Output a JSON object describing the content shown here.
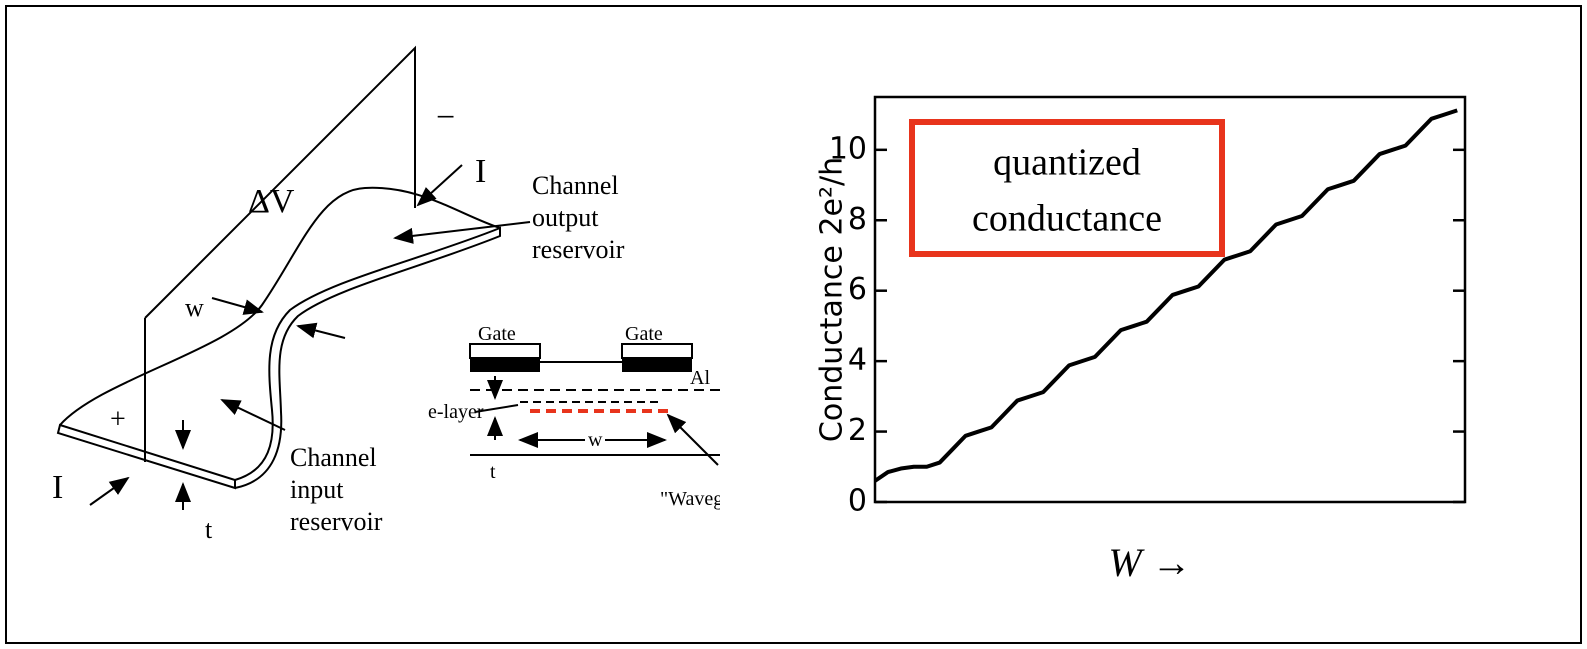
{
  "diagram": {
    "delta_v": "ΔV",
    "minus": "−",
    "plus": "+",
    "current_top": "I",
    "current_bottom": "I",
    "width_label": "w",
    "thickness_label": "t",
    "output_reservoir": [
      "Channel",
      "output",
      "reservoir"
    ],
    "input_reservoir": [
      "Channel",
      "input",
      "reservoir"
    ],
    "inset": {
      "gate_left": "Gate",
      "gate_right": "Gate",
      "al": "Al",
      "e_layer": "e-layer",
      "w": "w",
      "t": "t",
      "waveguide": "\"Waveg"
    }
  },
  "chart_data": {
    "type": "line",
    "ylabel": "Conductance 2e²/h",
    "xlabel": "W →",
    "annotation": [
      "quantized",
      "conductance"
    ],
    "x": [
      0,
      0.25,
      0.5,
      0.75,
      1,
      1.25,
      1.5,
      1.75,
      2,
      2.25,
      2.5,
      2.75,
      3,
      3.25,
      3.5,
      3.75,
      4,
      4.25,
      4.5,
      4.75,
      5,
      5.25,
      5.5,
      5.75,
      6,
      6.25,
      6.5,
      6.75,
      7,
      7.25,
      7.5,
      7.75,
      8,
      8.25,
      8.5,
      8.75,
      9,
      9.25,
      9.5,
      9.75,
      10,
      10.25,
      10.5,
      10.75,
      11,
      11.25
    ],
    "series": [
      {
        "color": "#000000",
        "values": [
          0.6,
          0.85,
          0.95,
          1.0,
          1.0,
          1.12,
          1.5,
          1.88,
          2,
          2.12,
          2.5,
          2.88,
          3,
          3.12,
          3.5,
          3.88,
          4,
          4.12,
          4.5,
          4.88,
          5,
          5.12,
          5.5,
          5.88,
          6,
          6.12,
          6.5,
          6.88,
          7,
          7.12,
          7.5,
          7.88,
          8,
          8.12,
          8.5,
          8.88,
          9,
          9.12,
          9.5,
          9.88,
          10,
          10.12,
          10.5,
          10.88,
          11,
          11.12
        ]
      }
    ],
    "xlim": [
      0,
      11.4
    ],
    "ylim": [
      0,
      11.5
    ],
    "yticks": [
      0,
      2,
      4,
      6,
      8,
      10
    ]
  }
}
